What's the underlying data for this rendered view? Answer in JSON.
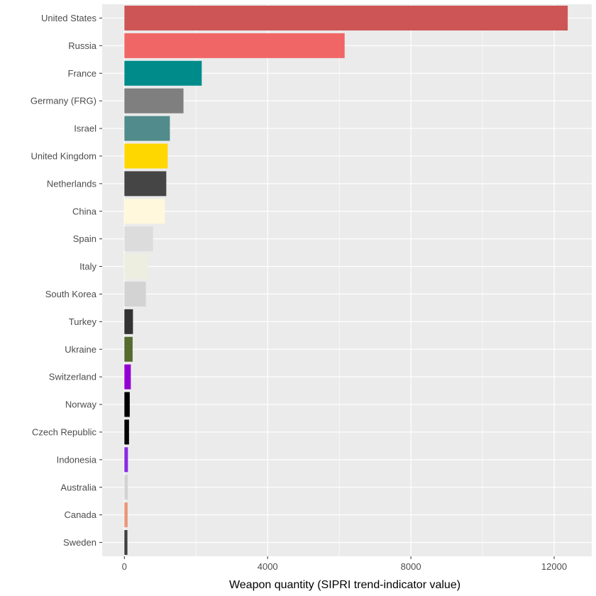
{
  "chart_data": {
    "type": "bar",
    "orientation": "horizontal",
    "title": "",
    "xlabel": "Weapon quantity (SIPRI trend-indicator value)",
    "ylabel": "",
    "xlim": [
      -620,
      13050
    ],
    "x_ticks": [
      0,
      4000,
      8000,
      12000
    ],
    "x_minor_ticks": [
      2000,
      6000,
      10000
    ],
    "x_tick_labels": [
      "0",
      "4000",
      "8000",
      "12000"
    ],
    "grid": true,
    "background": "#ebebeb",
    "categories": [
      "United States",
      "Russia",
      "France",
      "Germany (FRG)",
      "Israel",
      "United Kingdom",
      "Netherlands",
      "China",
      "Spain",
      "Italy",
      "South Korea",
      "Turkey",
      "Ukraine",
      "Switzerland",
      "Norway",
      "Czech Republic",
      "Indonesia",
      "Australia",
      "Canada",
      "Sweden"
    ],
    "values": [
      12380,
      6150,
      2160,
      1650,
      1270,
      1210,
      1170,
      1130,
      800,
      660,
      600,
      240,
      230,
      180,
      150,
      130,
      100,
      95,
      90,
      85
    ],
    "colors": [
      "#cd5555",
      "#f06666",
      "#008b8b",
      "#7f7f7f",
      "#528b8b",
      "#ffd700",
      "#454545",
      "#fff8dc",
      "#dcdcdc",
      "#eeeee0",
      "#d3d3d3",
      "#333333",
      "#556b2f",
      "#9400d3",
      "#000000",
      "#050505",
      "#8a2be2",
      "#d3d3d3",
      "#e9967a",
      "#404040"
    ]
  }
}
